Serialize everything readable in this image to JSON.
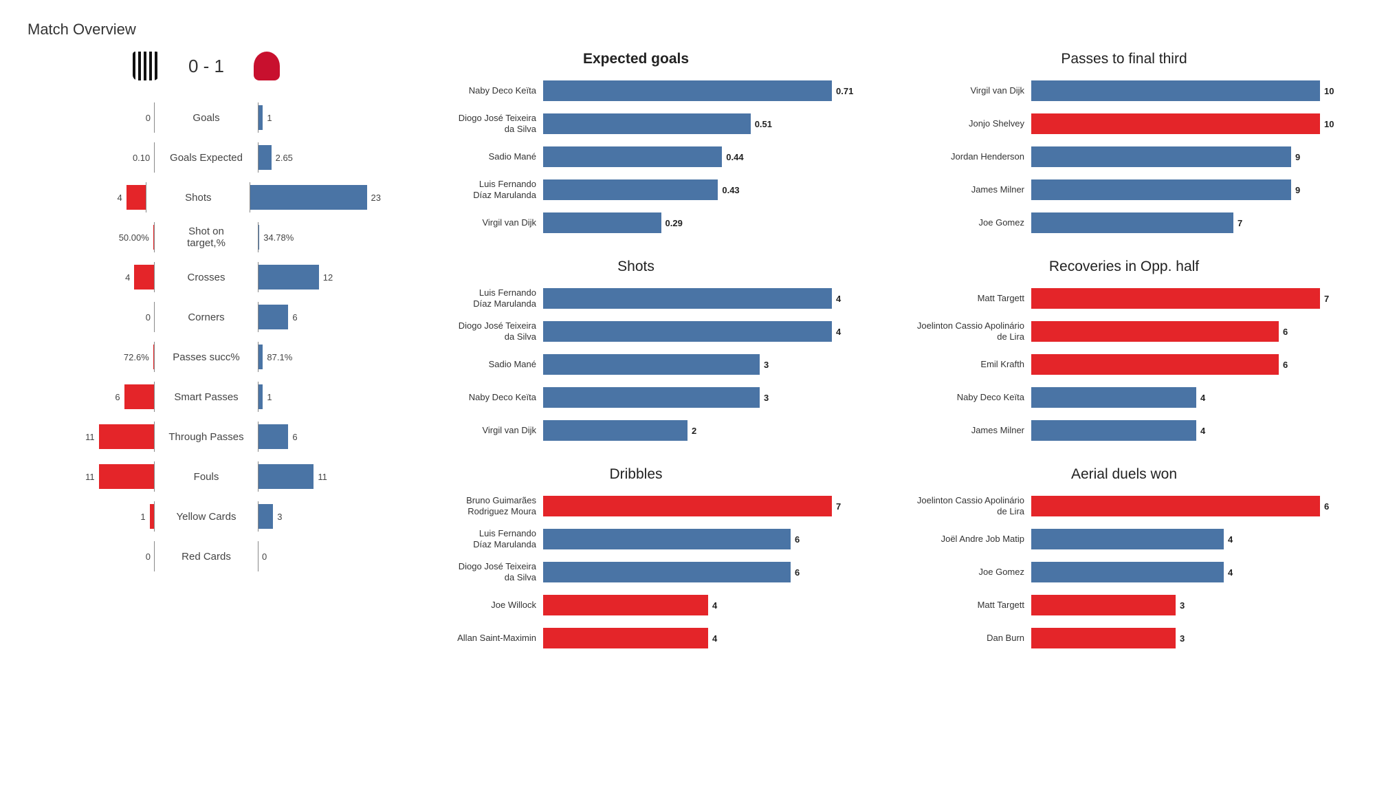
{
  "colors": {
    "home": "#e42529",
    "away": "#4a74a5",
    "text": "#333333"
  },
  "title": "Match Overview",
  "score": {
    "home": "0",
    "sep": " - ",
    "away": "1"
  },
  "overview": {
    "max_scale": 25,
    "stats": [
      {
        "label": "Goals",
        "home": 0,
        "away": 1,
        "home_text": "0",
        "away_text": "1",
        "bar_home": 0,
        "bar_away": 1
      },
      {
        "label": "Goals Expected",
        "home": 0.1,
        "away": 2.65,
        "home_text": "0.10",
        "away_text": "2.65",
        "bar_home": 0.1,
        "bar_away": 2.65
      },
      {
        "label": "Shots",
        "home": 4,
        "away": 23,
        "home_text": "4",
        "away_text": "23",
        "bar_home": 4,
        "bar_away": 23
      },
      {
        "label": "Shot on target,%",
        "home": 50,
        "away": 34.78,
        "home_text": "50.00%",
        "away_text": "34.78%",
        "bar_home": 0.3,
        "bar_away": 0.3,
        "multiline": true
      },
      {
        "label": "Crosses",
        "home": 4,
        "away": 12,
        "home_text": "4",
        "away_text": "12",
        "bar_home": 4,
        "bar_away": 12
      },
      {
        "label": "Corners",
        "home": 0,
        "away": 6,
        "home_text": "0",
        "away_text": "6",
        "bar_home": 0,
        "bar_away": 6
      },
      {
        "label": "Passes succ%",
        "home": 72.6,
        "away": 87.1,
        "home_text": "72.6%",
        "away_text": "87.1%",
        "bar_home": 0.3,
        "bar_away": 1.0
      },
      {
        "label": "Smart Passes",
        "home": 6,
        "away": 1,
        "home_text": "6",
        "away_text": "1",
        "bar_home": 6,
        "bar_away": 1
      },
      {
        "label": "Through Passes",
        "home": 11,
        "away": 6,
        "home_text": "11",
        "away_text": "6",
        "bar_home": 11,
        "bar_away": 6
      },
      {
        "label": "Fouls",
        "home": 11,
        "away": 11,
        "home_text": "11",
        "away_text": "11",
        "bar_home": 11,
        "bar_away": 11
      },
      {
        "label": "Yellow Cards",
        "home": 1,
        "away": 3,
        "home_text": "1",
        "away_text": "3",
        "bar_home": 1,
        "bar_away": 3
      },
      {
        "label": "Red Cards",
        "home": 0,
        "away": 0,
        "home_text": "0",
        "away_text": "0",
        "bar_home": 0,
        "bar_away": 0
      }
    ]
  },
  "mini_charts": [
    {
      "title": "Expected goals",
      "bold_title": true,
      "max": 0.71,
      "rows": [
        {
          "name": "Naby Deco Keïta",
          "val": 0.71,
          "val_text": "0.71",
          "team": "away"
        },
        {
          "name": "Diogo José Teixeira da Silva",
          "val": 0.51,
          "val_text": "0.51",
          "team": "away"
        },
        {
          "name": "Sadio Mané",
          "val": 0.44,
          "val_text": "0.44",
          "team": "away"
        },
        {
          "name": "Luis Fernando Díaz Marulanda",
          "val": 0.43,
          "val_text": "0.43",
          "team": "away"
        },
        {
          "name": "Virgil van Dijk",
          "val": 0.29,
          "val_text": "0.29",
          "team": "away"
        }
      ]
    },
    {
      "title": "Passes to final third",
      "bold_title": false,
      "max": 10,
      "rows": [
        {
          "name": "Virgil van Dijk",
          "val": 10,
          "val_text": "10",
          "team": "away"
        },
        {
          "name": "Jonjo Shelvey",
          "val": 10,
          "val_text": "10",
          "team": "home"
        },
        {
          "name": "Jordan Henderson",
          "val": 9,
          "val_text": "9",
          "team": "away"
        },
        {
          "name": "James Milner",
          "val": 9,
          "val_text": "9",
          "team": "away"
        },
        {
          "name": "Joe Gomez",
          "val": 7,
          "val_text": "7",
          "team": "away"
        }
      ]
    },
    {
      "title": "Shots",
      "bold_title": false,
      "max": 4,
      "rows": [
        {
          "name": "Luis Fernando Díaz Marulanda",
          "val": 4,
          "val_text": "4",
          "team": "away"
        },
        {
          "name": "Diogo José Teixeira da Silva",
          "val": 4,
          "val_text": "4",
          "team": "away"
        },
        {
          "name": "Sadio Mané",
          "val": 3,
          "val_text": "3",
          "team": "away"
        },
        {
          "name": "Naby Deco Keïta",
          "val": 3,
          "val_text": "3",
          "team": "away"
        },
        {
          "name": "Virgil van Dijk",
          "val": 2,
          "val_text": "2",
          "team": "away"
        }
      ]
    },
    {
      "title": "Recoveries in Opp. half",
      "bold_title": false,
      "max": 7,
      "rows": [
        {
          "name": "Matt Targett",
          "val": 7,
          "val_text": "7",
          "team": "home"
        },
        {
          "name": "Joelinton Cassio Apolinário de Lira",
          "val": 6,
          "val_text": "6",
          "team": "home"
        },
        {
          "name": "Emil Krafth",
          "val": 6,
          "val_text": "6",
          "team": "home"
        },
        {
          "name": "Naby Deco Keïta",
          "val": 4,
          "val_text": "4",
          "team": "away"
        },
        {
          "name": "James Milner",
          "val": 4,
          "val_text": "4",
          "team": "away"
        }
      ]
    },
    {
      "title": "Dribbles",
      "bold_title": false,
      "max": 7,
      "rows": [
        {
          "name": "Bruno Guimarães Rodriguez Moura",
          "val": 7,
          "val_text": "7",
          "team": "home"
        },
        {
          "name": "Luis Fernando Díaz Marulanda",
          "val": 6,
          "val_text": "6",
          "team": "away"
        },
        {
          "name": "Diogo José Teixeira da Silva",
          "val": 6,
          "val_text": "6",
          "team": "away"
        },
        {
          "name": "Joe Willock",
          "val": 4,
          "val_text": "4",
          "team": "home"
        },
        {
          "name": "Allan Saint-Maximin",
          "val": 4,
          "val_text": "4",
          "team": "home"
        }
      ]
    },
    {
      "title": "Aerial duels won",
      "bold_title": false,
      "max": 6,
      "rows": [
        {
          "name": "Joelinton Cassio Apolinário de Lira",
          "val": 6,
          "val_text": "6",
          "team": "home"
        },
        {
          "name": "Joël Andre Job Matip",
          "val": 4,
          "val_text": "4",
          "team": "away"
        },
        {
          "name": "Joe Gomez",
          "val": 4,
          "val_text": "4",
          "team": "away"
        },
        {
          "name": "Matt Targett",
          "val": 3,
          "val_text": "3",
          "team": "home"
        },
        {
          "name": "Dan Burn",
          "val": 3,
          "val_text": "3",
          "team": "home"
        }
      ]
    }
  ]
}
